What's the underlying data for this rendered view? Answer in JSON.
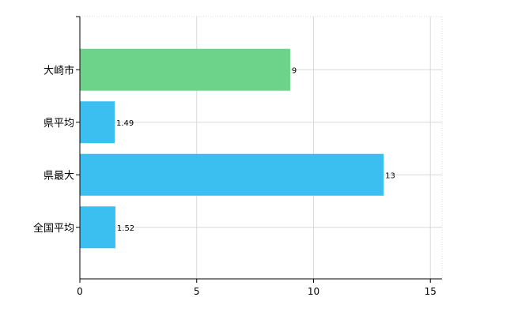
{
  "chart_data": {
    "type": "bar",
    "orientation": "horizontal",
    "categories": [
      "大崎市",
      "県平均",
      "県最大",
      "全国平均"
    ],
    "values": [
      9,
      1.49,
      13,
      1.52
    ],
    "value_labels": [
      "9",
      "1.49",
      "13",
      "1.52"
    ],
    "bar_colors": [
      "#6dd38a",
      "#3bbff0",
      "#3bbff0",
      "#3bbff0"
    ],
    "xlim": [
      0,
      15.5
    ],
    "xticks": [
      0,
      5,
      10,
      15
    ],
    "title": "",
    "xlabel": "",
    "ylabel": "",
    "grid": true,
    "legend": "none"
  }
}
